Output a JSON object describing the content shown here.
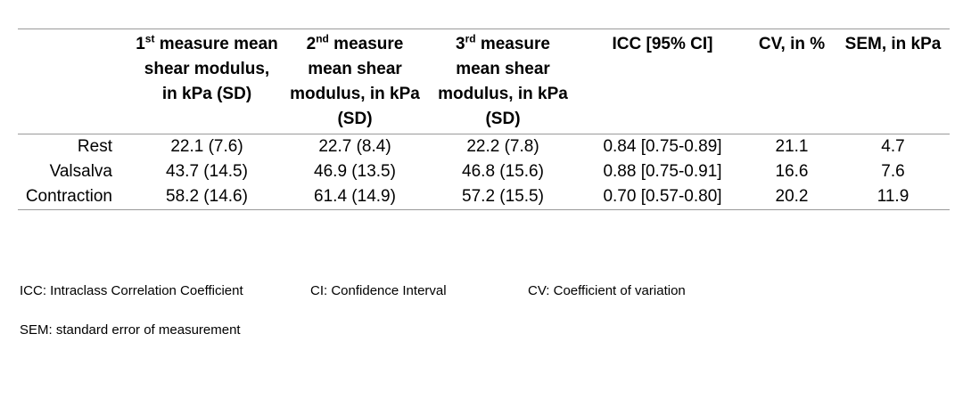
{
  "table": {
    "headers": [
      {
        "id": "label",
        "parts": []
      },
      {
        "id": "m1",
        "ordinal": "1",
        "suffix": "st",
        "rest": " measure mean shear modulus, in kPa (SD)"
      },
      {
        "id": "m2",
        "ordinal": "2",
        "suffix": "nd",
        "rest": " measure mean shear modulus, in kPa (SD)"
      },
      {
        "id": "m3",
        "ordinal": "3",
        "suffix": "rd",
        "rest": " measure mean shear modulus, in kPa (SD)"
      },
      {
        "id": "icc",
        "text": "ICC [95% CI]"
      },
      {
        "id": "cv",
        "text": "CV, in %"
      },
      {
        "id": "sem",
        "text": "SEM, in kPa"
      }
    ],
    "rows": [
      {
        "label": "Rest",
        "cells": [
          "22.1 (7.6)",
          "22.7 (8.4)",
          "22.2 (7.8)",
          "0.84 [0.75-0.89]",
          "21.1",
          "4.7"
        ]
      },
      {
        "label": "Valsalva",
        "cells": [
          "43.7 (14.5)",
          "46.9 (13.5)",
          "46.8 (15.6)",
          "0.88 [0.75-0.91]",
          "16.6",
          "7.6"
        ]
      },
      {
        "label": "Contraction",
        "cells": [
          "58.2 (14.6)",
          "61.4 (14.9)",
          "57.2 (15.5)",
          "0.70 [0.57-0.80]",
          "20.2",
          "11.9"
        ]
      }
    ]
  },
  "notes": {
    "icc": "ICC: Intraclass Correlation Coefficient",
    "ci": "CI: Confidence Interval",
    "cv": "CV: Coefficient of variation",
    "sem": "SEM: standard error of measurement"
  }
}
